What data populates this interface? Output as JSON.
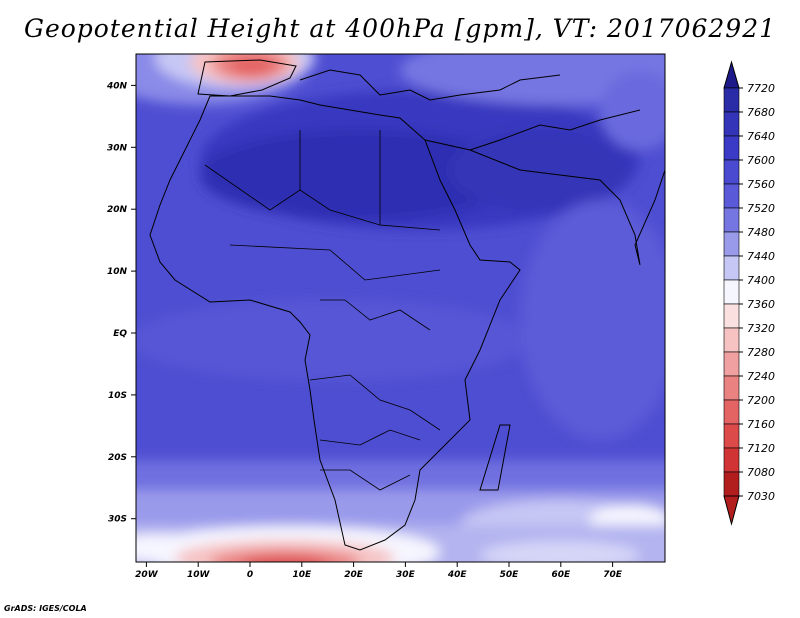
{
  "map": {
    "title": "Geopotential Height at 400hPa [gpm], VT: 2017062921",
    "credit": "GrADS: IGES/COLA",
    "lat_labels": [
      "40N",
      "30N",
      "20N",
      "10N",
      "EQ",
      "10S",
      "20S",
      "30S"
    ],
    "lon_labels": [
      "20W",
      "10W",
      "0",
      "10E",
      "20E",
      "30E",
      "40E",
      "50E",
      "60E",
      "70E"
    ],
    "extent": {
      "lon": [
        -22,
        80
      ],
      "lat": [
        -36,
        45
      ]
    }
  },
  "colorbar": {
    "levels": [
      "7720",
      "7680",
      "7640",
      "7600",
      "7560",
      "7520",
      "7480",
      "7440",
      "7400",
      "7360",
      "7320",
      "7280",
      "7240",
      "7200",
      "7160",
      "7120",
      "7080",
      "7030"
    ],
    "colors": [
      "#1e1a8a",
      "#2a2ba6",
      "#3434b8",
      "#3a3ac6",
      "#4a4ad0",
      "#5a5ad8",
      "#7676e2",
      "#9a9aeb",
      "#c7c7f5",
      "#f6f6ff",
      "#fbe0e0",
      "#f6c2c2",
      "#f0a0a0",
      "#ea8282",
      "#e46464",
      "#dc4a4a",
      "#d03434",
      "#b21e1e"
    ]
  }
}
